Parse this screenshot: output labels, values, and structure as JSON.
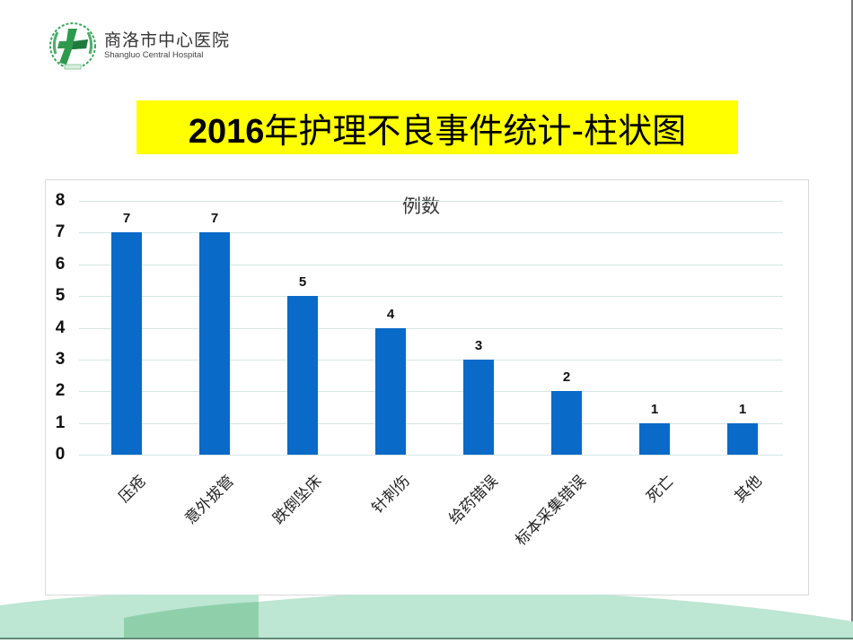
{
  "header": {
    "logo_name_cn": "商洛市中心医院",
    "logo_name_en": "Shangluo Central Hospital",
    "logo_icon": "hospital-cross-wreath-icon"
  },
  "slide": {
    "title_year": "2016",
    "title_rest": "年护理不良事件统计-柱状图",
    "title_highlight_color": "#ffff00"
  },
  "chart_data": {
    "type": "bar",
    "title": "2016年护理不良事件统计-柱状图",
    "series": [
      {
        "name": "例数",
        "values": [
          7,
          7,
          5,
          4,
          3,
          2,
          1,
          1
        ],
        "color": "#0a6ac7"
      }
    ],
    "categories": [
      "压疮",
      "意外拔管",
      "跌倒坠床",
      "针刺伤",
      "给药错误",
      "标本采集错误",
      "死亡",
      "其他"
    ],
    "values": [
      7,
      7,
      5,
      4,
      3,
      2,
      1,
      1
    ],
    "xlabel": "",
    "ylabel": "",
    "ylim": [
      0,
      8
    ],
    "yticks": [
      "0",
      "1",
      "2",
      "3",
      "4",
      "5",
      "6",
      "7",
      "8"
    ],
    "grid": true,
    "data_labels": [
      "7",
      "7",
      "5",
      "4",
      "3",
      "2",
      "1",
      "1"
    ],
    "legend_position": "top-center"
  },
  "colors": {
    "bar": "#0a6ac7",
    "gridline": "#d7e6e6",
    "wave_light": "#bde6d3",
    "wave_dark": "#8fd0ab"
  }
}
